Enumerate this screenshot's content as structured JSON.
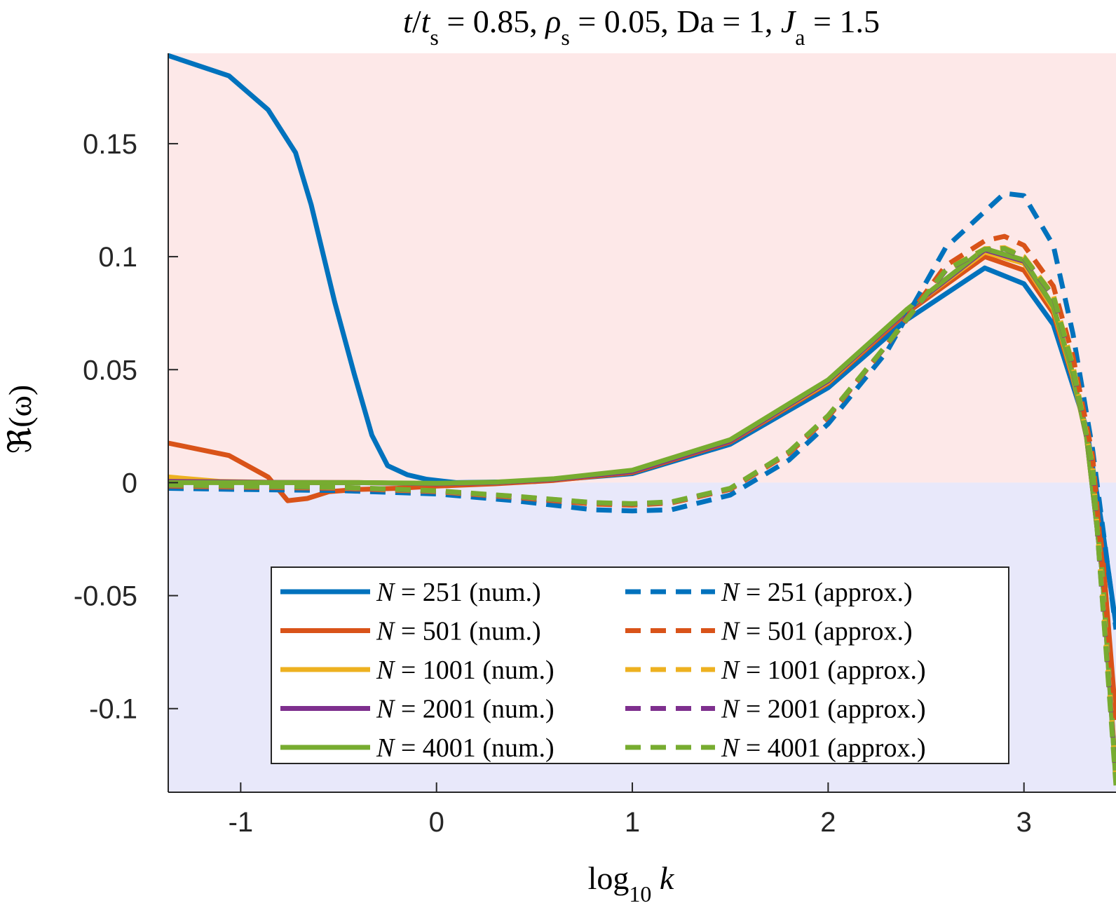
{
  "chart_data": {
    "type": "line",
    "title": "t/ts = 0.85, ρs = 0.05, Da = 1, Ja = 1.5",
    "title_parts": {
      "t": "t",
      "ts_base": "t",
      "ts_sub": "s",
      "rho": "ρ",
      "rho_sub": "s",
      "rho_val": "0.05",
      "t_val": "0.85",
      "da": "Da",
      "da_val": "1",
      "ja": "J",
      "ja_sub": "a",
      "ja_val": "1.5"
    },
    "xlabel": "log10 k",
    "xlabel_parts": {
      "log": "log",
      "sub": "10",
      "var": "k"
    },
    "ylabel": "ℜ(ω)",
    "xlim": [
      -1.37,
      3.47
    ],
    "ylim": [
      -0.137,
      0.19
    ],
    "xticks": [
      -1,
      0,
      1,
      2,
      3
    ],
    "xtick_labels": [
      "-1",
      "0",
      "1",
      "2",
      "3"
    ],
    "yticks": [
      -0.1,
      -0.05,
      0,
      0.05,
      0.1,
      0.15
    ],
    "ytick_labels": [
      "-0.1",
      "-0.05",
      "0",
      "0.05",
      "0.1",
      "0.15"
    ],
    "regions": [
      {
        "name": "unstable",
        "from": 0,
        "to": 0.19,
        "color": "#fde8e8"
      },
      {
        "name": "stable",
        "from": -0.137,
        "to": 0,
        "color": "#e8e8fa"
      }
    ],
    "colors": {
      "N251": "#0072BD",
      "N501": "#D95319",
      "N1001": "#EDB120",
      "N2001": "#7E2F8E",
      "N4001": "#77AC30"
    },
    "series": [
      {
        "name": "N = 251 (num.)",
        "N": "251",
        "kind": "num.",
        "style": "solid",
        "color": "#0072BD",
        "x": [
          -1.37,
          -1.06,
          -0.86,
          -0.72,
          -0.64,
          -0.52,
          -0.42,
          -0.33,
          -0.25,
          -0.15,
          -0.05,
          0.1,
          0.5,
          1.0,
          1.5,
          2.0,
          2.4,
          2.8,
          3.0,
          3.15,
          3.25,
          3.32,
          3.4,
          3.47
        ],
        "y": [
          0.189,
          0.18,
          0.165,
          0.146,
          0.123,
          0.08,
          0.048,
          0.021,
          0.0075,
          0.0035,
          0.0015,
          0.0,
          0.0005,
          0.004,
          0.017,
          0.042,
          0.072,
          0.095,
          0.088,
          0.07,
          0.043,
          0.024,
          -0.02,
          -0.063
        ]
      },
      {
        "name": "N = 501 (num.)",
        "N": "501",
        "kind": "num.",
        "style": "solid",
        "color": "#D95319",
        "x": [
          -1.37,
          -1.06,
          -0.86,
          -0.76,
          -0.66,
          -0.55,
          -0.4,
          -0.2,
          0.0,
          0.3,
          0.6,
          1.0,
          1.5,
          2.0,
          2.4,
          2.8,
          3.0,
          3.15,
          3.25,
          3.32,
          3.4,
          3.47
        ],
        "y": [
          0.0175,
          0.012,
          0.0025,
          -0.008,
          -0.007,
          -0.004,
          -0.003,
          -0.0025,
          -0.0015,
          -0.0005,
          0.001,
          0.0045,
          0.018,
          0.044,
          0.075,
          0.1,
          0.094,
          0.075,
          0.046,
          0.022,
          -0.03,
          -0.105
        ]
      },
      {
        "name": "N = 1001 (num.)",
        "N": "1001",
        "kind": "num.",
        "style": "solid",
        "color": "#EDB120",
        "x": [
          -1.37,
          -1.1,
          -0.8,
          -0.4,
          0.0,
          0.3,
          0.6,
          1.0,
          1.5,
          2.0,
          2.4,
          2.8,
          3.0,
          3.15,
          3.25,
          3.32,
          3.4,
          3.47
        ],
        "y": [
          0.0025,
          0.0005,
          0.0001,
          0.0,
          -0.0005,
          0.0,
          0.0015,
          0.005,
          0.0185,
          0.0445,
          0.076,
          0.102,
          0.097,
          0.077,
          0.047,
          0.02,
          -0.04,
          -0.13
        ]
      },
      {
        "name": "N = 2001 (num.)",
        "N": "2001",
        "kind": "num.",
        "style": "solid",
        "color": "#7E2F8E",
        "x": [
          -1.37,
          -1.1,
          -0.8,
          -0.4,
          0.0,
          0.3,
          0.6,
          1.0,
          1.5,
          2.0,
          2.4,
          2.8,
          3.0,
          3.15,
          3.25,
          3.32,
          3.4,
          3.47
        ],
        "y": [
          0.0005,
          0.0003,
          0.0001,
          0.0,
          -0.0005,
          0.0,
          0.0015,
          0.005,
          0.0185,
          0.045,
          0.076,
          0.103,
          0.098,
          0.078,
          0.048,
          0.02,
          -0.04,
          -0.132
        ]
      },
      {
        "name": "N = 4001 (num.)",
        "N": "4001",
        "kind": "num.",
        "style": "solid",
        "color": "#77AC30",
        "x": [
          -1.37,
          -1.1,
          -0.8,
          -0.4,
          0.0,
          0.3,
          0.6,
          1.0,
          1.5,
          2.0,
          2.4,
          2.8,
          3.0,
          3.15,
          3.25,
          3.32,
          3.4,
          3.47
        ],
        "y": [
          0.0,
          0.0,
          0.0,
          0.0,
          -0.0003,
          0.0002,
          0.0017,
          0.0055,
          0.019,
          0.0455,
          0.0765,
          0.1035,
          0.0985,
          0.078,
          0.048,
          0.02,
          -0.04,
          -0.133
        ]
      },
      {
        "name": "N = 251 (approx.)",
        "N": "251",
        "kind": "approx.",
        "style": "dashed",
        "color": "#0072BD",
        "x": [
          -1.37,
          -1.0,
          -0.5,
          0.0,
          0.4,
          0.8,
          1.0,
          1.2,
          1.5,
          1.8,
          2.0,
          2.3,
          2.6,
          2.9,
          3.0,
          3.15,
          3.25,
          3.35,
          3.47
        ],
        "y": [
          -0.0025,
          -0.003,
          -0.0035,
          -0.005,
          -0.008,
          -0.012,
          -0.0125,
          -0.012,
          -0.0055,
          0.01,
          0.026,
          0.058,
          0.104,
          0.128,
          0.127,
          0.105,
          0.066,
          0.015,
          -0.065
        ]
      },
      {
        "name": "N = 501 (approx.)",
        "N": "501",
        "kind": "approx.",
        "style": "dashed",
        "color": "#D95319",
        "x": [
          -1.37,
          -1.0,
          -0.5,
          0.0,
          0.4,
          0.8,
          1.0,
          1.2,
          1.5,
          1.8,
          2.0,
          2.3,
          2.6,
          2.8,
          2.9,
          3.0,
          3.15,
          3.25,
          3.35,
          3.47
        ],
        "y": [
          -0.0015,
          -0.002,
          -0.0025,
          -0.004,
          -0.0065,
          -0.0095,
          -0.01,
          -0.009,
          -0.003,
          0.013,
          0.029,
          0.061,
          0.096,
          0.107,
          0.109,
          0.105,
          0.087,
          0.056,
          0.012,
          -0.105
        ]
      },
      {
        "name": "N = 1001 (approx.)",
        "N": "1001",
        "kind": "approx.",
        "style": "dashed",
        "color": "#EDB120",
        "x": [
          -1.37,
          -1.0,
          -0.5,
          0.0,
          0.4,
          0.8,
          1.0,
          1.2,
          1.5,
          1.8,
          2.0,
          2.3,
          2.6,
          2.8,
          2.9,
          3.0,
          3.15,
          3.25,
          3.35,
          3.47
        ],
        "y": [
          -0.0012,
          -0.0017,
          -0.0022,
          -0.0038,
          -0.0062,
          -0.009,
          -0.0095,
          -0.0087,
          -0.0027,
          0.0135,
          0.0295,
          0.061,
          0.094,
          0.1035,
          0.104,
          0.1,
          0.083,
          0.052,
          0.008,
          -0.13
        ]
      },
      {
        "name": "N = 2001 (approx.)",
        "N": "2001",
        "kind": "approx.",
        "style": "dashed",
        "color": "#7E2F8E",
        "x": [
          -1.37,
          -1.0,
          -0.5,
          0.0,
          0.4,
          0.8,
          1.0,
          1.2,
          1.5,
          1.8,
          2.0,
          2.3,
          2.6,
          2.8,
          2.9,
          3.0,
          3.15,
          3.25,
          3.35,
          3.47
        ],
        "y": [
          -0.0011,
          -0.0016,
          -0.0021,
          -0.0037,
          -0.0061,
          -0.0089,
          -0.0094,
          -0.0086,
          -0.0026,
          0.0136,
          0.0296,
          0.061,
          0.0938,
          0.1032,
          0.1035,
          0.0995,
          0.0825,
          0.051,
          0.007,
          -0.132
        ]
      },
      {
        "name": "N = 4001 (approx.)",
        "N": "4001",
        "kind": "approx.",
        "style": "dashed",
        "color": "#77AC30",
        "x": [
          -1.37,
          -1.0,
          -0.5,
          0.0,
          0.4,
          0.8,
          1.0,
          1.2,
          1.5,
          1.8,
          2.0,
          2.3,
          2.6,
          2.8,
          2.9,
          3.0,
          3.15,
          3.25,
          3.35,
          3.47
        ],
        "y": [
          -0.001,
          -0.0015,
          -0.002,
          -0.0036,
          -0.006,
          -0.0088,
          -0.0093,
          -0.0085,
          -0.0025,
          0.0137,
          0.0297,
          0.0612,
          0.094,
          0.1033,
          0.1036,
          0.0997,
          0.0828,
          0.0512,
          0.0072,
          -0.134
        ]
      }
    ],
    "legend": {
      "placement": "lower-center",
      "prefix": "N",
      "eq": "=",
      "entries": [
        {
          "N": "251",
          "kind": "(num.)",
          "style": "solid",
          "color": "#0072BD"
        },
        {
          "N": "251",
          "kind": "(approx.)",
          "style": "dashed",
          "color": "#0072BD"
        },
        {
          "N": "501",
          "kind": "(num.)",
          "style": "solid",
          "color": "#D95319"
        },
        {
          "N": "501",
          "kind": "(approx.)",
          "style": "dashed",
          "color": "#D95319"
        },
        {
          "N": "1001",
          "kind": "(num.)",
          "style": "solid",
          "color": "#EDB120"
        },
        {
          "N": "1001",
          "kind": "(approx.)",
          "style": "dashed",
          "color": "#EDB120"
        },
        {
          "N": "2001",
          "kind": "(num.)",
          "style": "solid",
          "color": "#7E2F8E"
        },
        {
          "N": "2001",
          "kind": "(approx.)",
          "style": "dashed",
          "color": "#7E2F8E"
        },
        {
          "N": "4001",
          "kind": "(num.)",
          "style": "solid",
          "color": "#77AC30"
        },
        {
          "N": "4001",
          "kind": "(approx.)",
          "style": "dashed",
          "color": "#77AC30"
        }
      ]
    }
  }
}
